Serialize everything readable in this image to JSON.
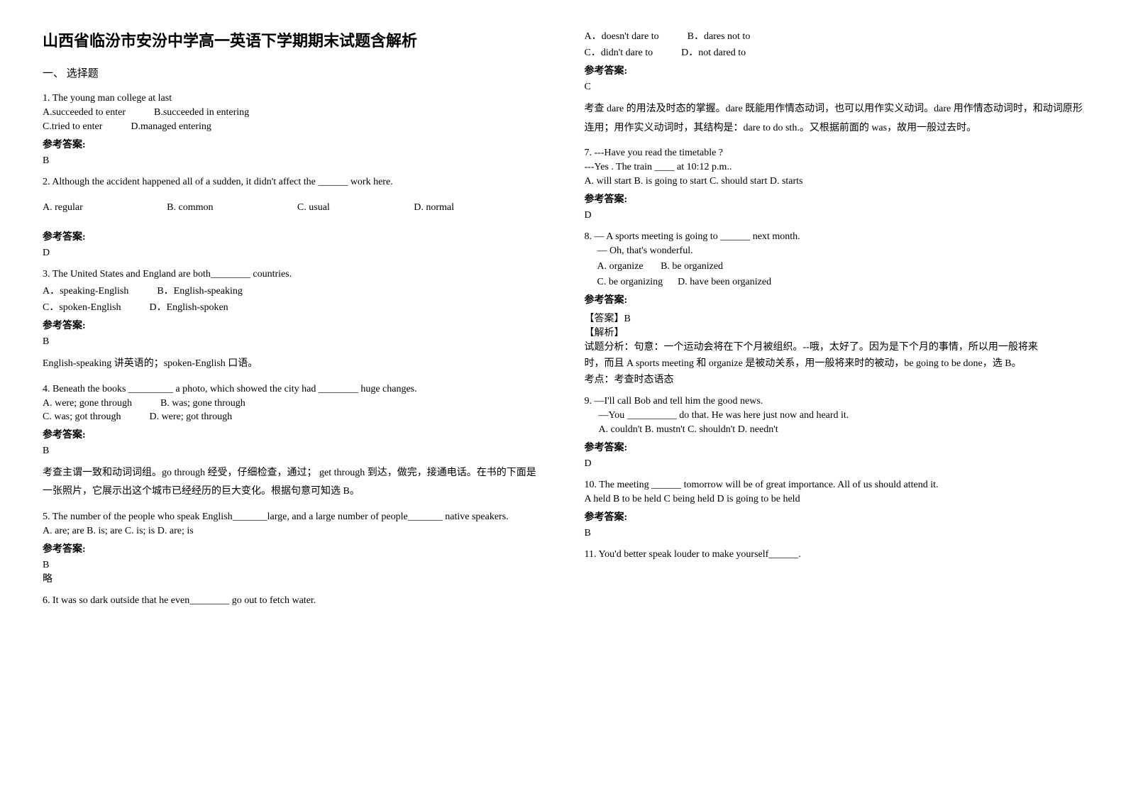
{
  "title": "山西省临汾市安汾中学高一英语下学期期末试题含解析",
  "section1": "一、 选择题",
  "answerLabel": "参考答案:",
  "q1": {
    "text": "1. The young man                            college at last",
    "optA": "A.succeeded to enter",
    "optB": "B.succeeded in entering",
    "optC": "C.tried to enter",
    "optD": "D.managed entering",
    "answer": "B"
  },
  "q2": {
    "text": "2. Although the accident happened all of a sudden, it didn't affect the ______ work here.",
    "optA": "A. regular",
    "optB": "B. common",
    "optC": "C. usual",
    "optD": "D. normal",
    "answer": "D"
  },
  "q3": {
    "text": "3. The United States and England are both________ countries.",
    "optA": "A．speaking-English",
    "optB": "B．English-speaking",
    "optC": "C．spoken-English",
    "optD": "D．English-spoken",
    "answer": "B",
    "explanation": "English-speaking 讲英语的；spoken-English 口语。"
  },
  "q4": {
    "text": "4. Beneath the books _________ a photo, which showed the city had ________ huge changes.",
    "optA": "A. were; gone through",
    "optB": "B. was; gone through",
    "optC": "C. was; got through",
    "optD": "D. were; got through",
    "answer": "B",
    "explanation": "考查主谓一致和动词词组。go through 经受，仔细检查，通过； get through 到达，做完，接通电话。在书的下面是一张照片，它展示出这个城市已经经历的巨大变化。根据句意可知选 B。"
  },
  "q5": {
    "text": "5. The number of the people who speak English_______large, and a large number of people_______ native speakers.",
    "opts": " A. are; are   B. is; are   C. is; is   D. are; is",
    "answer": "B",
    "note": "略"
  },
  "q6": {
    "text": "6. It was so dark outside that he even________ go out to fetch water.",
    "optA": "A．doesn't dare to",
    "optB": "B．dares not to",
    "optC": "C．didn't dare to",
    "optD": "D．not dared to",
    "answer": "C",
    "explanation": "考查 dare 的用法及时态的掌握。dare 既能用作情态动词，也可以用作实义动词。dare 用作情态动词时，和动词原形连用；用作实义动词时，其结构是：dare to do sth.。又根据前面的 was，故用一般过去时。"
  },
  "q7": {
    "text": "7.  ---Have you read the timetable ?",
    "text2": "---Yes .  The train ____ at 10:12 p.m..",
    "opts": "A. will start   B. is going to start   C. should start    D. starts",
    "answer": "D"
  },
  "q8": {
    "text": "8. — A sports meeting is going to ______ next month.",
    "text2": "— Oh, that's wonderful.",
    "optA": "A. organize",
    "optB": "B. be organized",
    "optC": "C. be organizing",
    "optD": "D. have been organized",
    "answerHead": "【答案】B",
    "explHead": "【解析】",
    "expl1": "试题分析：句意：一个运动会将在下个月被组织。--哦，太好了。因为是下个月的事情，所以用一般将来",
    "expl2": "时，而且 A sports meeting 和  organize 是被动关系，用一般将来时的被动，be going to be done，选 B。",
    "expl3": "考点：考查时态语态"
  },
  "q9": {
    "text": "9. —I'll call Bob and tell him the good news.",
    "text2": "—You __________ do that. He was here just now and heard it.",
    "opts": "A. couldn't          B. mustn't       C. shouldn't    D. needn't",
    "answer": "D"
  },
  "q10": {
    "text": "10. The meeting ______ tomorrow will be of great importance. All of us should attend it.",
    "opts": "A  held     B  to be held    C being held    D  is going to be held",
    "answer": "B"
  },
  "q11": {
    "text": "11. You'd better speak louder to make yourself______."
  }
}
